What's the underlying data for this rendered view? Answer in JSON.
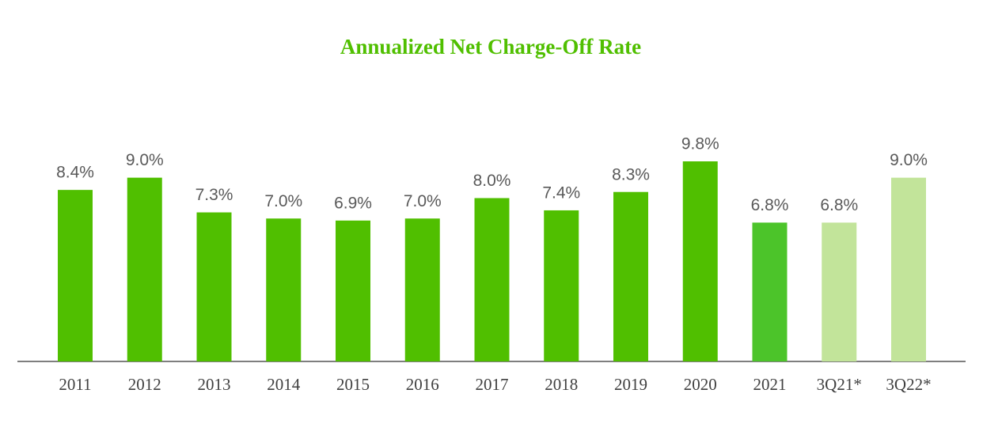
{
  "chart_data": {
    "type": "bar",
    "title": "Annualized Net Charge-Off Rate",
    "categories": [
      "2011",
      "2012",
      "2013",
      "2014",
      "2015",
      "2016",
      "2017",
      "2018",
      "2019",
      "2020",
      "2021",
      "3Q21*",
      "3Q22*"
    ],
    "values": [
      8.4,
      9.0,
      7.3,
      7.0,
      6.9,
      7.0,
      8.0,
      7.4,
      8.3,
      9.8,
      6.8,
      6.8,
      9.0
    ],
    "value_labels": [
      "8.4%",
      "9.0%",
      "7.3%",
      "7.0%",
      "6.9%",
      "7.0%",
      "8.0%",
      "7.4%",
      "8.3%",
      "9.8%",
      "6.8%",
      "6.8%",
      "9.0%"
    ],
    "colors": [
      "#50bf00",
      "#50bf00",
      "#50bf00",
      "#50bf00",
      "#50bf00",
      "#50bf00",
      "#50bf00",
      "#50bf00",
      "#50bf00",
      "#50bf00",
      "#4cc42a",
      "#c2e49a",
      "#c2e49a"
    ]
  }
}
